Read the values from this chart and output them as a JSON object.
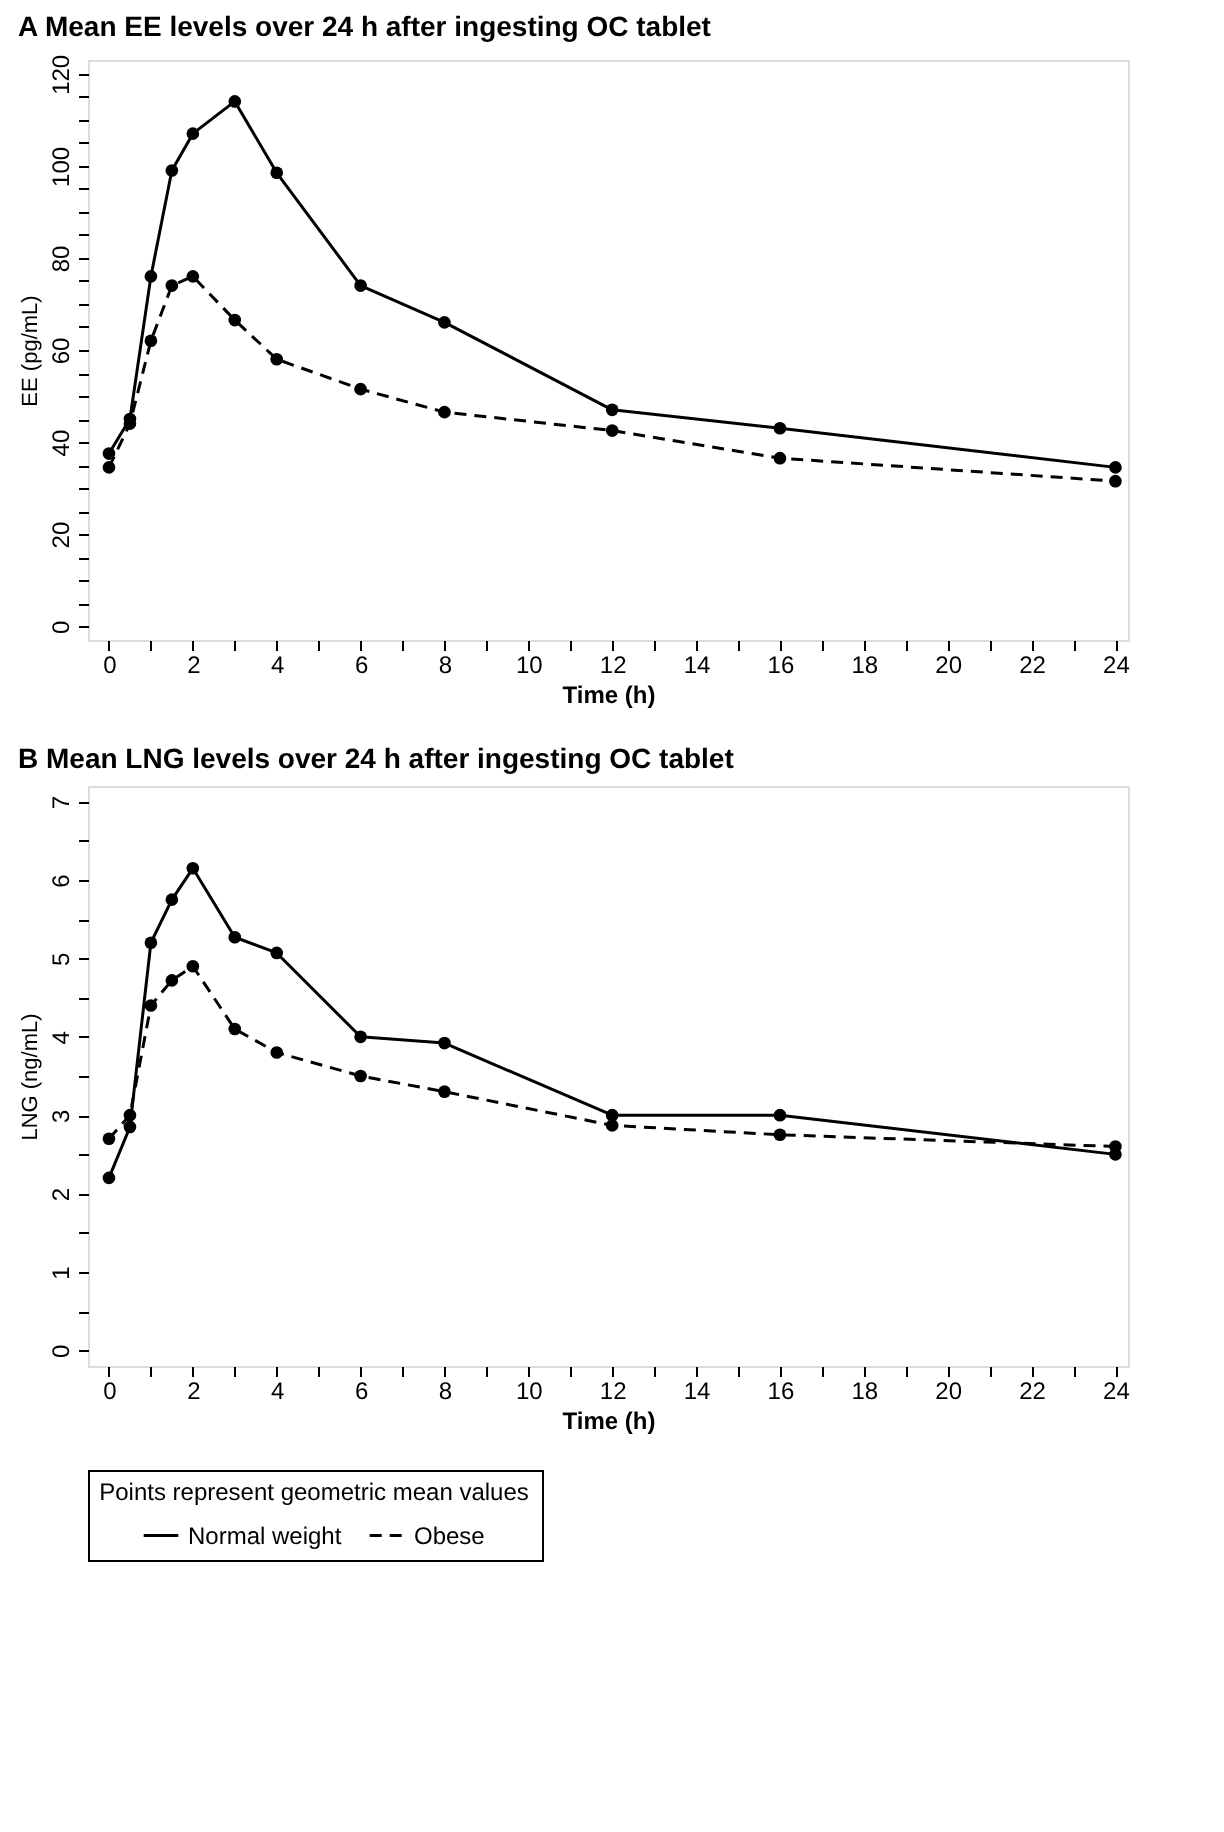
{
  "chart_data": [
    {
      "type": "line",
      "title": "A   Mean EE levels over 24 h after ingesting OC tablet",
      "xlabel": "Time (h)",
      "ylabel": "EE (pg/mL)",
      "x": [
        0,
        0.5,
        1,
        1.5,
        2,
        3,
        4,
        6,
        8,
        12,
        16,
        24
      ],
      "xlim": [
        -0.5,
        24.3
      ],
      "ylim": [
        -3,
        123
      ],
      "xticks": [
        0,
        {
          "value": 1,
          "label": null
        },
        2,
        {
          "value": 3,
          "label": null
        },
        4,
        {
          "value": 5,
          "label": null
        },
        6,
        {
          "value": 7,
          "label": null
        },
        8,
        {
          "value": 9,
          "label": null
        },
        10,
        {
          "value": 11,
          "label": null
        },
        12,
        {
          "value": 13,
          "label": null
        },
        14,
        {
          "value": 15,
          "label": null
        },
        16,
        {
          "value": 17,
          "label": null
        },
        18,
        {
          "value": 19,
          "label": null
        },
        20,
        {
          "value": 21,
          "label": null
        },
        22,
        {
          "value": 23,
          "label": null
        },
        24
      ],
      "yticks": [
        0,
        {
          "value": 5,
          "label": null
        },
        {
          "value": 10,
          "label": null
        },
        {
          "value": 15,
          "label": null
        },
        20,
        {
          "value": 25,
          "label": null
        },
        {
          "value": 30,
          "label": null
        },
        {
          "value": 35,
          "label": null
        },
        40,
        {
          "value": 45,
          "label": null
        },
        {
          "value": 50,
          "label": null
        },
        {
          "value": 55,
          "label": null
        },
        60,
        {
          "value": 65,
          "label": null
        },
        {
          "value": 70,
          "label": null
        },
        {
          "value": 75,
          "label": null
        },
        80,
        {
          "value": 85,
          "label": null
        },
        {
          "value": 90,
          "label": null
        },
        {
          "value": 95,
          "label": null
        },
        100,
        {
          "value": 105,
          "label": null
        },
        {
          "value": 110,
          "label": null
        },
        {
          "value": 115,
          "label": null
        },
        120
      ],
      "grid": false,
      "legend": "bottom",
      "marker": "circle",
      "series": [
        {
          "name": "Normal weight",
          "color": "#000000",
          "line_style": "solid",
          "values": [
            37.5,
            45,
            76,
            99,
            107,
            114,
            98.5,
            74,
            66,
            47,
            43,
            34.5
          ]
        },
        {
          "name": "Obese",
          "color": "#000000",
          "line_style": "dashed",
          "values": [
            34.5,
            44,
            62,
            74,
            76,
            66.5,
            58,
            51.5,
            46.5,
            42.5,
            36.5,
            31.5
          ]
        }
      ]
    },
    {
      "type": "line",
      "title": "B   Mean LNG levels over 24 h after ingesting OC tablet",
      "xlabel": "Time (h)",
      "ylabel": "LNG (ng/mL)",
      "x": [
        0,
        0.5,
        1,
        1.5,
        2,
        3,
        4,
        6,
        8,
        12,
        16,
        24
      ],
      "xlim": [
        -0.5,
        24.3
      ],
      "ylim": [
        -0.2,
        7.2
      ],
      "xticks": [
        0,
        {
          "value": 1,
          "label": null
        },
        2,
        {
          "value": 3,
          "label": null
        },
        4,
        {
          "value": 5,
          "label": null
        },
        6,
        {
          "value": 7,
          "label": null
        },
        8,
        {
          "value": 9,
          "label": null
        },
        10,
        {
          "value": 11,
          "label": null
        },
        12,
        {
          "value": 13,
          "label": null
        },
        14,
        {
          "value": 15,
          "label": null
        },
        16,
        {
          "value": 17,
          "label": null
        },
        18,
        {
          "value": 19,
          "label": null
        },
        20,
        {
          "value": 21,
          "label": null
        },
        22,
        {
          "value": 23,
          "label": null
        },
        24
      ],
      "yticks": [
        0,
        {
          "value": 0.5,
          "label": null
        },
        1,
        {
          "value": 1.5,
          "label": null
        },
        2,
        {
          "value": 2.5,
          "label": null
        },
        3,
        {
          "value": 3.5,
          "label": null
        },
        4,
        {
          "value": 4.5,
          "label": null
        },
        5,
        {
          "value": 5.5,
          "label": null
        },
        6,
        {
          "value": 6.5,
          "label": null
        },
        7
      ],
      "grid": false,
      "legend": "bottom",
      "legend_title": "Points represent geometric mean values",
      "marker": "circle",
      "series": [
        {
          "name": "Normal weight",
          "color": "#000000",
          "line_style": "solid",
          "values": [
            2.2,
            2.85,
            5.2,
            5.75,
            6.15,
            5.27,
            5.07,
            4.0,
            3.92,
            3.0,
            3.0,
            2.5
          ]
        },
        {
          "name": "Obese",
          "color": "#000000",
          "line_style": "dashed",
          "values": [
            2.7,
            3.0,
            4.4,
            4.72,
            4.9,
            4.1,
            3.8,
            3.5,
            3.3,
            2.87,
            2.75,
            2.6
          ]
        }
      ]
    }
  ]
}
